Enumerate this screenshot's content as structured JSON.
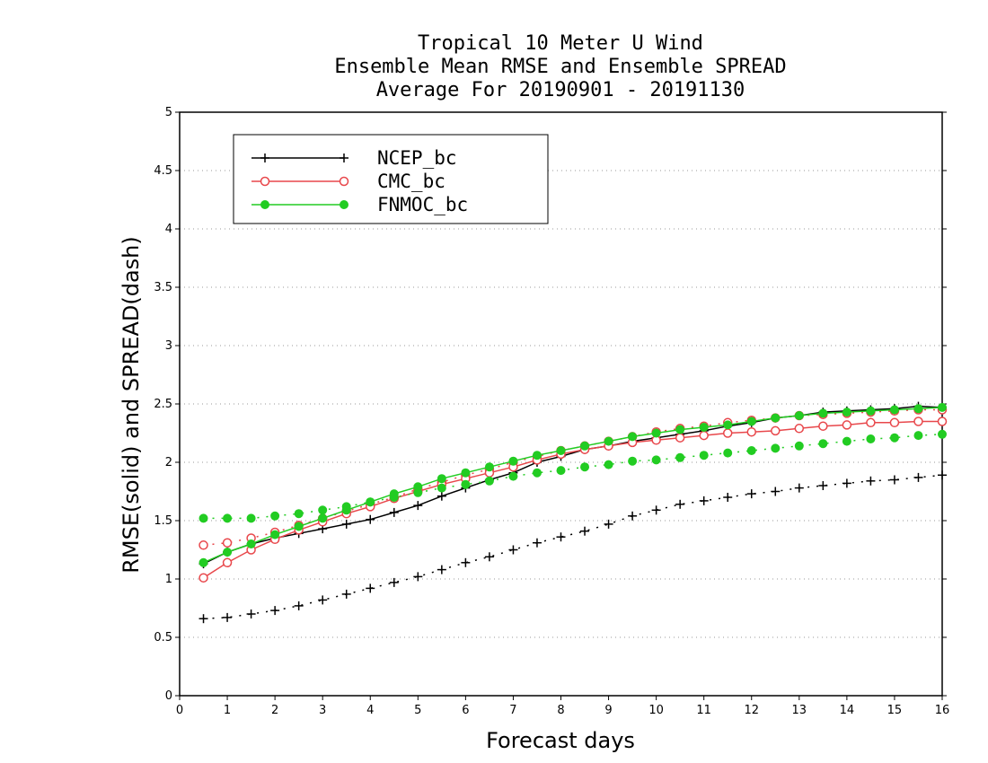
{
  "chart_data": {
    "type": "line",
    "title": [
      "Tropical 10 Meter U Wind",
      "Ensemble Mean RMSE and Ensemble SPREAD",
      "Average For 20190901 - 20191130"
    ],
    "xlabel": "Forecast days",
    "ylabel": "RMSE(solid) and SPREAD(dash)",
    "xlim": [
      0,
      16
    ],
    "ylim": [
      0,
      5
    ],
    "x_ticks": [
      "0",
      "1",
      "2",
      "3",
      "4",
      "5",
      "6",
      "7",
      "8",
      "9",
      "10",
      "11",
      "12",
      "13",
      "14",
      "15",
      "16"
    ],
    "y_ticks": [
      "0",
      "0.5",
      "1",
      "1.5",
      "2",
      "2.5",
      "3",
      "3.5",
      "4",
      "4.5",
      "5"
    ],
    "grid": "horizontal dotted",
    "legend_position": "top-left",
    "x": [
      0.5,
      1,
      1.5,
      2,
      2.5,
      3,
      3.5,
      4,
      4.5,
      5,
      5.5,
      6,
      6.5,
      7,
      7.5,
      8,
      8.5,
      9,
      9.5,
      10,
      10.5,
      11,
      11.5,
      12,
      12.5,
      13,
      13.5,
      14,
      14.5,
      15,
      15.5,
      16
    ],
    "series": [
      {
        "name": "NCEP_bc",
        "color": "#000000",
        "marker": "plus",
        "rmse": [
          1.13,
          1.23,
          1.3,
          1.35,
          1.39,
          1.43,
          1.47,
          1.51,
          1.57,
          1.63,
          1.71,
          1.78,
          1.85,
          1.91,
          2.0,
          2.05,
          2.11,
          2.14,
          2.18,
          2.21,
          2.24,
          2.27,
          2.31,
          2.34,
          2.38,
          2.4,
          2.43,
          2.44,
          2.45,
          2.46,
          2.48,
          2.47
        ],
        "spread": [
          0.66,
          0.67,
          0.7,
          0.73,
          0.77,
          0.82,
          0.87,
          0.92,
          0.97,
          1.02,
          1.08,
          1.14,
          1.19,
          1.25,
          1.31,
          1.36,
          1.41,
          1.47,
          1.54,
          1.59,
          1.64,
          1.67,
          1.7,
          1.73,
          1.75,
          1.78,
          1.8,
          1.82,
          1.84,
          1.85,
          1.87,
          1.89
        ]
      },
      {
        "name": "CMC_bc",
        "color": "#e8474b",
        "marker": "circle-open",
        "rmse": [
          1.01,
          1.14,
          1.25,
          1.34,
          1.42,
          1.49,
          1.56,
          1.62,
          1.69,
          1.75,
          1.81,
          1.86,
          1.91,
          1.96,
          2.02,
          2.07,
          2.11,
          2.14,
          2.17,
          2.19,
          2.21,
          2.23,
          2.25,
          2.26,
          2.27,
          2.29,
          2.31,
          2.32,
          2.34,
          2.34,
          2.35,
          2.35
        ],
        "spread": [
          1.29,
          1.31,
          1.35,
          1.4,
          1.46,
          1.52,
          1.58,
          1.64,
          1.7,
          1.77,
          1.83,
          1.89,
          1.94,
          2.0,
          2.05,
          2.1,
          2.14,
          2.18,
          2.22,
          2.26,
          2.29,
          2.31,
          2.34,
          2.36,
          2.38,
          2.4,
          2.41,
          2.42,
          2.43,
          2.44,
          2.45,
          2.45
        ]
      },
      {
        "name": "FNMOC_bc",
        "color": "#22cc22",
        "marker": "circle-filled",
        "rmse": [
          1.14,
          1.23,
          1.3,
          1.38,
          1.45,
          1.52,
          1.59,
          1.66,
          1.73,
          1.79,
          1.86,
          1.91,
          1.96,
          2.01,
          2.06,
          2.1,
          2.14,
          2.18,
          2.22,
          2.25,
          2.28,
          2.3,
          2.32,
          2.35,
          2.38,
          2.4,
          2.42,
          2.43,
          2.44,
          2.45,
          2.46,
          2.47
        ],
        "spread": [
          1.52,
          1.52,
          1.52,
          1.54,
          1.56,
          1.59,
          1.62,
          1.66,
          1.7,
          1.74,
          1.78,
          1.81,
          1.84,
          1.88,
          1.91,
          1.93,
          1.96,
          1.98,
          2.01,
          2.02,
          2.04,
          2.06,
          2.08,
          2.1,
          2.12,
          2.14,
          2.16,
          2.18,
          2.2,
          2.21,
          2.23,
          2.24
        ]
      }
    ]
  }
}
